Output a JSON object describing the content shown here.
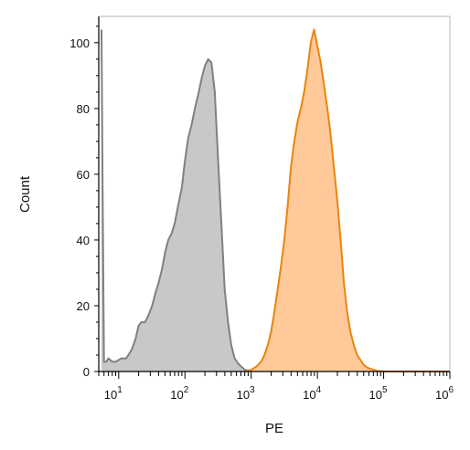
{
  "chart_data": {
    "type": "area",
    "xlabel": "PE",
    "ylabel": "Count",
    "x_scale": "log",
    "xlim": [
      5,
      1000000
    ],
    "ylim": [
      0,
      108
    ],
    "x_tick_labels": [
      {
        "base": "10",
        "exp": "1",
        "value": 10
      },
      {
        "base": "10",
        "exp": "2",
        "value": 100
      },
      {
        "base": "10",
        "exp": "3",
        "value": 1000
      },
      {
        "base": "10",
        "exp": "4",
        "value": 10000
      },
      {
        "base": "10",
        "exp": "5",
        "value": 100000
      },
      {
        "base": "10",
        "exp": "6",
        "value": 1000000
      }
    ],
    "y_ticks": [
      0,
      20,
      40,
      60,
      80,
      100
    ],
    "y_tick_labels": [
      "0",
      "20",
      "40",
      "60",
      "80",
      "100"
    ],
    "grid": false,
    "series": [
      {
        "color": "#808080",
        "fill": "#c8c8c8",
        "x": [
          5.5,
          5.7,
          6,
          6.5,
          7,
          8,
          9,
          10,
          11,
          12,
          13,
          14,
          15,
          16,
          18,
          20,
          22,
          25,
          28,
          32,
          36,
          40,
          45,
          50,
          56,
          63,
          70,
          80,
          90,
          100,
          112,
          126,
          141,
          158,
          178,
          200,
          224,
          251,
          282,
          316,
          355,
          398,
          447,
          501,
          562,
          631,
          708,
          794,
          891,
          1000
        ],
        "y": [
          104,
          60,
          3,
          3,
          4,
          3,
          3,
          3.5,
          4,
          4,
          4,
          5,
          6,
          7,
          10,
          14,
          15,
          15,
          17,
          20,
          24,
          27,
          31,
          36,
          40,
          42,
          45,
          51,
          56,
          64,
          71,
          75,
          80,
          84,
          89,
          93,
          95,
          94,
          85,
          65,
          45,
          25,
          15,
          8,
          4,
          2.5,
          1.5,
          0.6,
          0.3,
          0
        ]
      },
      {
        "color": "#e8850f",
        "fill": "#ffc999",
        "x": [
          800,
          1000,
          1200,
          1413,
          1585,
          1778,
          1995,
          2239,
          2512,
          2818,
          3162,
          3548,
          3981,
          4467,
          5012,
          5623,
          6310,
          7079,
          7943,
          8913,
          10000,
          11220,
          12589,
          14125,
          15849,
          17783,
          19953,
          22387,
          25119,
          28184,
          31623,
          35481,
          39811,
          44668,
          50119,
          56234,
          63096,
          70795,
          79433,
          89125,
          100000,
          1000000
        ],
        "y": [
          0,
          0.5,
          1.5,
          3,
          5,
          8,
          12,
          18,
          25,
          32,
          40,
          50,
          62,
          70,
          76,
          80,
          85,
          92,
          100,
          104,
          99,
          94,
          87,
          80,
          72,
          62,
          52,
          40,
          27,
          18,
          12,
          8,
          5,
          3.5,
          2,
          1.2,
          0.8,
          0.5,
          0.2,
          0.1,
          0,
          0
        ]
      }
    ]
  }
}
